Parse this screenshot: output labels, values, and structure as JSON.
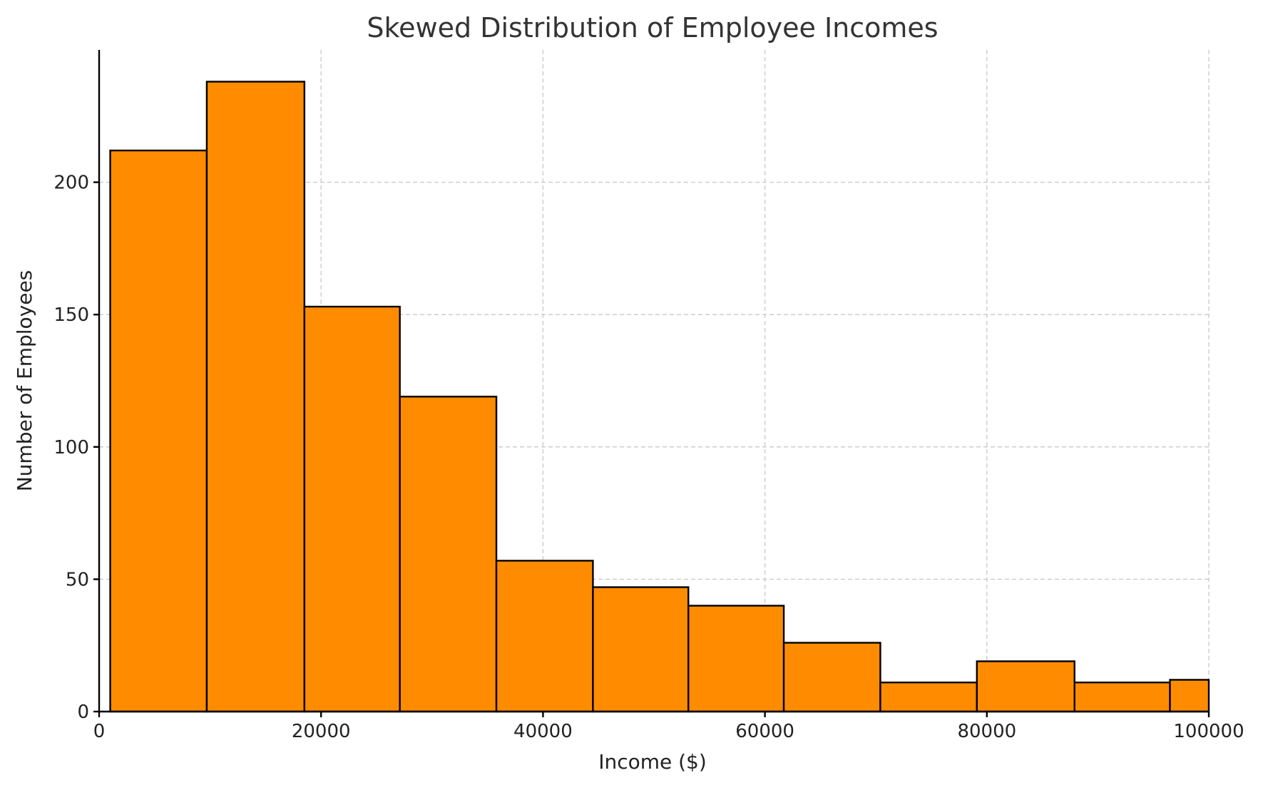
{
  "chart_data": {
    "type": "bar",
    "title": "Skewed Distribution of Employee Incomes",
    "xlabel": "Income ($)",
    "ylabel": "Number of Employees",
    "xlim": [
      0,
      100000
    ],
    "ylim": [
      0,
      250
    ],
    "xticks": [
      0,
      20000,
      40000,
      60000,
      80000,
      100000
    ],
    "yticks": [
      0,
      50,
      100,
      150,
      200
    ],
    "grid": true,
    "bar_color": "#FF8C00",
    "edge_color": "#000000",
    "bins": [
      {
        "x0": 1000,
        "x1": 9700,
        "value": 212
      },
      {
        "x0": 9700,
        "x1": 18500,
        "value": 238
      },
      {
        "x0": 18500,
        "x1": 27100,
        "value": 153
      },
      {
        "x0": 27100,
        "x1": 35800,
        "value": 119
      },
      {
        "x0": 35800,
        "x1": 44500,
        "value": 57
      },
      {
        "x0": 44500,
        "x1": 53100,
        "value": 47
      },
      {
        "x0": 53100,
        "x1": 61700,
        "value": 40
      },
      {
        "x0": 61700,
        "x1": 70400,
        "value": 26
      },
      {
        "x0": 70400,
        "x1": 79100,
        "value": 11
      },
      {
        "x0": 79100,
        "x1": 87900,
        "value": 19
      },
      {
        "x0": 87900,
        "x1": 96500,
        "value": 11
      },
      {
        "x0": 96500,
        "x1": 100000,
        "value": 12
      }
    ]
  }
}
